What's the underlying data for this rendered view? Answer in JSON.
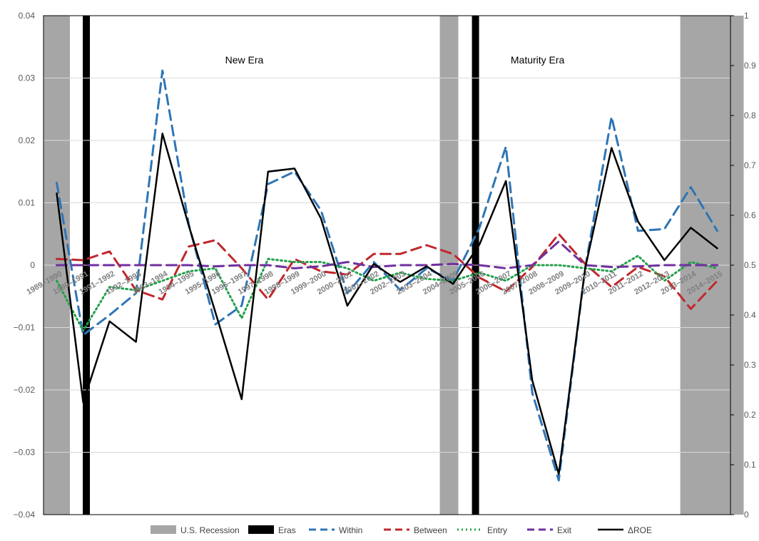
{
  "chart_data": {
    "type": "line",
    "title": "",
    "xlabel": "",
    "ylabel": "",
    "categories": [
      "1989–1990",
      "1990–1991",
      "1991–1992",
      "1992–1993",
      "1993–1994",
      "1994–1995",
      "1995–1996",
      "1996–1997",
      "1997–1998",
      "1998–1999",
      "1999–2000",
      "2000–2001",
      "2001–2002",
      "2002–2003",
      "2003–2004",
      "2004–2005",
      "2005–2006",
      "2006–2007",
      "2007–2008",
      "2008–2009",
      "2009–2010",
      "2010–2011",
      "2011–2012",
      "2012–2013",
      "2013–2014",
      "2014–2015"
    ],
    "ylim": [
      -0.04,
      0.04
    ],
    "yticks": [
      "0.04",
      "0.03",
      "0.02",
      "0.01",
      "0",
      "−0.01",
      "−0.02",
      "−0.03",
      "−0.04"
    ],
    "y2lim": [
      0,
      1
    ],
    "y2ticks": [
      "1",
      "0.9",
      "0.8",
      "0.7",
      "0.6",
      "0.5",
      "0.4",
      "0.3",
      "0.2",
      "0.1",
      "0"
    ],
    "grid": true,
    "legend_position": "bottom",
    "series": [
      {
        "name": "Within",
        "color": "#2e75b6",
        "style": "dashed",
        "values": [
          0.0132,
          -0.0112,
          -0.008,
          -0.0045,
          0.0312,
          0.0065,
          -0.0095,
          -0.0065,
          0.013,
          0.015,
          0.0088,
          -0.0045,
          0.0005,
          -0.004,
          -0.0005,
          -0.0025,
          0.006,
          0.019,
          -0.0205,
          -0.0345,
          -0.0005,
          0.0238,
          0.0055,
          0.0058,
          0.0125,
          0.0055
        ]
      },
      {
        "name": "Between",
        "color": "#c0282d",
        "style": "dashed",
        "values": [
          0.001,
          0.0008,
          0.0022,
          -0.004,
          -0.0055,
          0.003,
          0.004,
          -0.0005,
          -0.0055,
          0.001,
          -0.001,
          -0.0015,
          0.0018,
          0.0018,
          0.0032,
          0.0018,
          -0.002,
          -0.0042,
          -0.0003,
          0.005,
          0.0002,
          -0.0035,
          -0.0003,
          -0.0018,
          -0.007,
          -0.0025
        ]
      },
      {
        "name": "Entry",
        "color": "#22a04b",
        "style": "dotted",
        "values": [
          -0.0025,
          -0.0105,
          -0.0035,
          -0.004,
          -0.0025,
          -0.001,
          -0.0005,
          -0.0085,
          0.001,
          0.0005,
          0.0005,
          -0.0005,
          -0.0025,
          -0.0012,
          -0.0022,
          -0.0025,
          -0.0012,
          -0.0025,
          0.0,
          0.0,
          -0.0005,
          -0.001,
          0.0015,
          -0.0025,
          0.0005,
          -0.0005
        ]
      },
      {
        "name": "Exit",
        "color": "#7030a0",
        "style": "dashed",
        "values": [
          0.0,
          0.0,
          0.0,
          0.0,
          0.0,
          0.0,
          -0.0002,
          0.0,
          0.0,
          -0.0005,
          -0.0002,
          0.0005,
          -0.0003,
          0.0,
          0.0,
          0.0002,
          0.0,
          -0.0005,
          0.0,
          0.0038,
          0.0,
          -0.0003,
          -0.0002,
          0.0,
          0.0,
          0.0
        ]
      },
      {
        "name": "ΔROE",
        "color": "#000000",
        "style": "solid",
        "values": [
          0.0115,
          -0.022,
          -0.009,
          -0.0123,
          0.0211,
          0.0063,
          -0.0075,
          -0.0215,
          0.015,
          0.0155,
          0.0075,
          -0.0065,
          0.0002,
          -0.0027,
          -0.0002,
          -0.003,
          0.0033,
          0.0135,
          -0.0185,
          -0.0335,
          -0.0005,
          0.0188,
          0.007,
          0.0008,
          0.006,
          0.0027
        ]
      }
    ],
    "recessions": [
      [
        -0.5,
        0.5
      ],
      [
        14.5,
        15.2
      ],
      [
        23.6,
        26.0
      ]
    ],
    "eras": [
      1.12,
      15.85
    ],
    "era_labels": [
      {
        "text": "New Era",
        "at": 7.1
      },
      {
        "text": "Maturity Era",
        "at": 18.2
      }
    ],
    "legend": [
      {
        "label": "U.S. Recession",
        "kind": "area",
        "color": "#a6a6a6"
      },
      {
        "label": "Eras",
        "kind": "area",
        "color": "#000000"
      },
      {
        "label": "Within",
        "kind": "line",
        "color": "#2e75b6",
        "style": "dashed"
      },
      {
        "label": "Between",
        "kind": "line",
        "color": "#c0282d",
        "style": "dashed"
      },
      {
        "label": "Entry",
        "kind": "line",
        "color": "#22a04b",
        "style": "dotted"
      },
      {
        "label": "Exit",
        "kind": "line",
        "color": "#7030a0",
        "style": "dashed"
      },
      {
        "label": "ΔROE",
        "kind": "line",
        "color": "#000000",
        "style": "solid"
      }
    ]
  }
}
